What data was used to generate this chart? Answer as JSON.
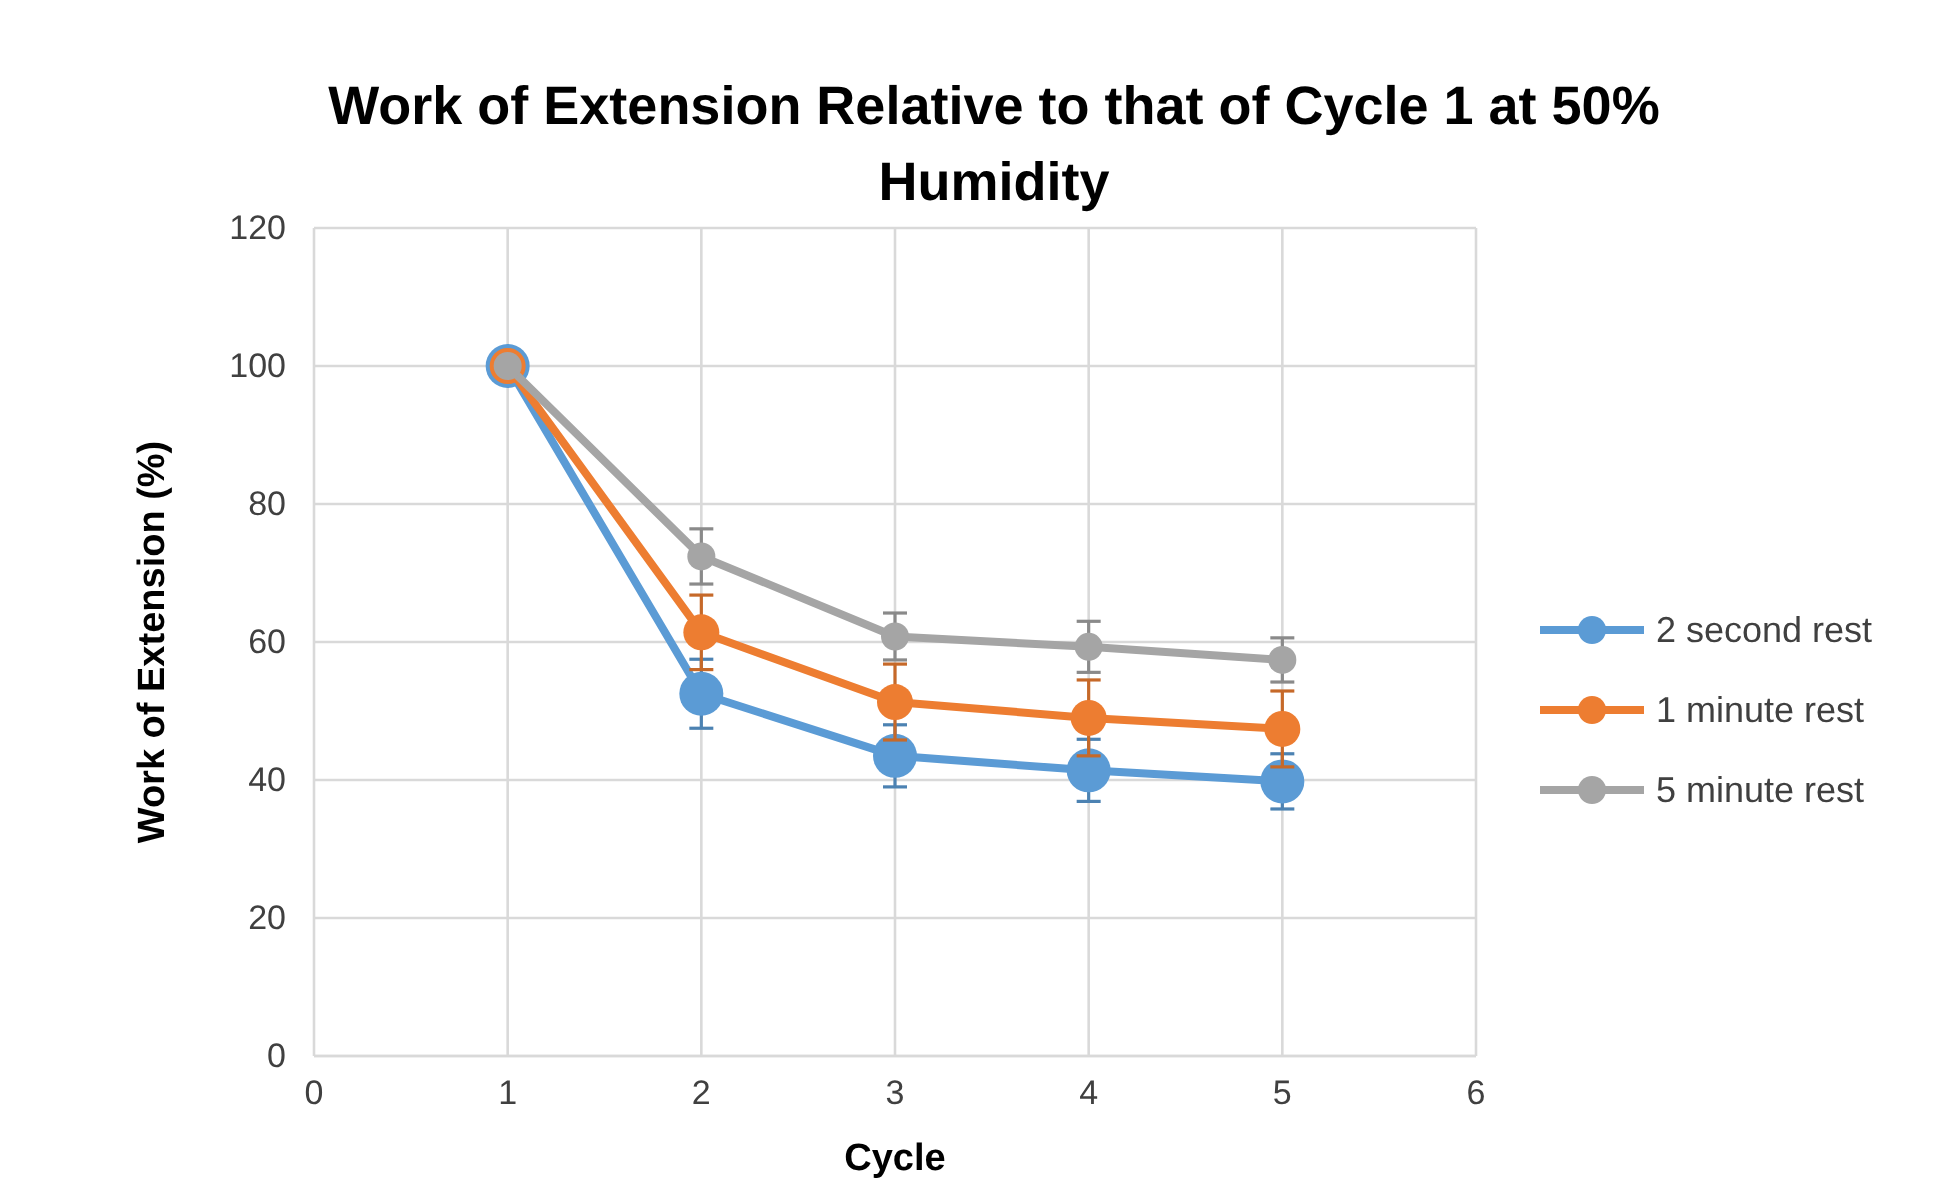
{
  "chart_data": {
    "type": "line",
    "title": "Work of Extension Relative to that of Cycle 1 at 50% Humidity",
    "xlabel": "Cycle",
    "ylabel": "Work  of Extension (%)",
    "x": [
      1,
      2,
      3,
      4,
      5
    ],
    "xlim": [
      0,
      6
    ],
    "xticks": [
      0,
      1,
      2,
      3,
      4,
      5,
      6
    ],
    "ylim": [
      0,
      120
    ],
    "yticks": [
      0,
      20,
      40,
      60,
      80,
      100,
      120
    ],
    "grid": true,
    "legend": "right",
    "marker": "circle",
    "line_style": "solid",
    "series": [
      {
        "name": "2 second rest",
        "color": "#5b9bd5",
        "values": [
          100,
          52.5,
          43.5,
          41.4,
          39.8
        ],
        "errors": [
          null,
          5,
          4.5,
          4.5,
          4
        ]
      },
      {
        "name": "1 minute rest",
        "color": "#ed7d31",
        "values": [
          100,
          61.4,
          51.3,
          49,
          47.4
        ],
        "errors": [
          null,
          5.4,
          5.5,
          5.5,
          5.5
        ]
      },
      {
        "name": "5 minute rest",
        "color": "#a5a5a5",
        "values": [
          100,
          72.4,
          60.8,
          59.3,
          57.4
        ],
        "errors": [
          null,
          4,
          3.4,
          3.7,
          3.2
        ]
      }
    ]
  }
}
